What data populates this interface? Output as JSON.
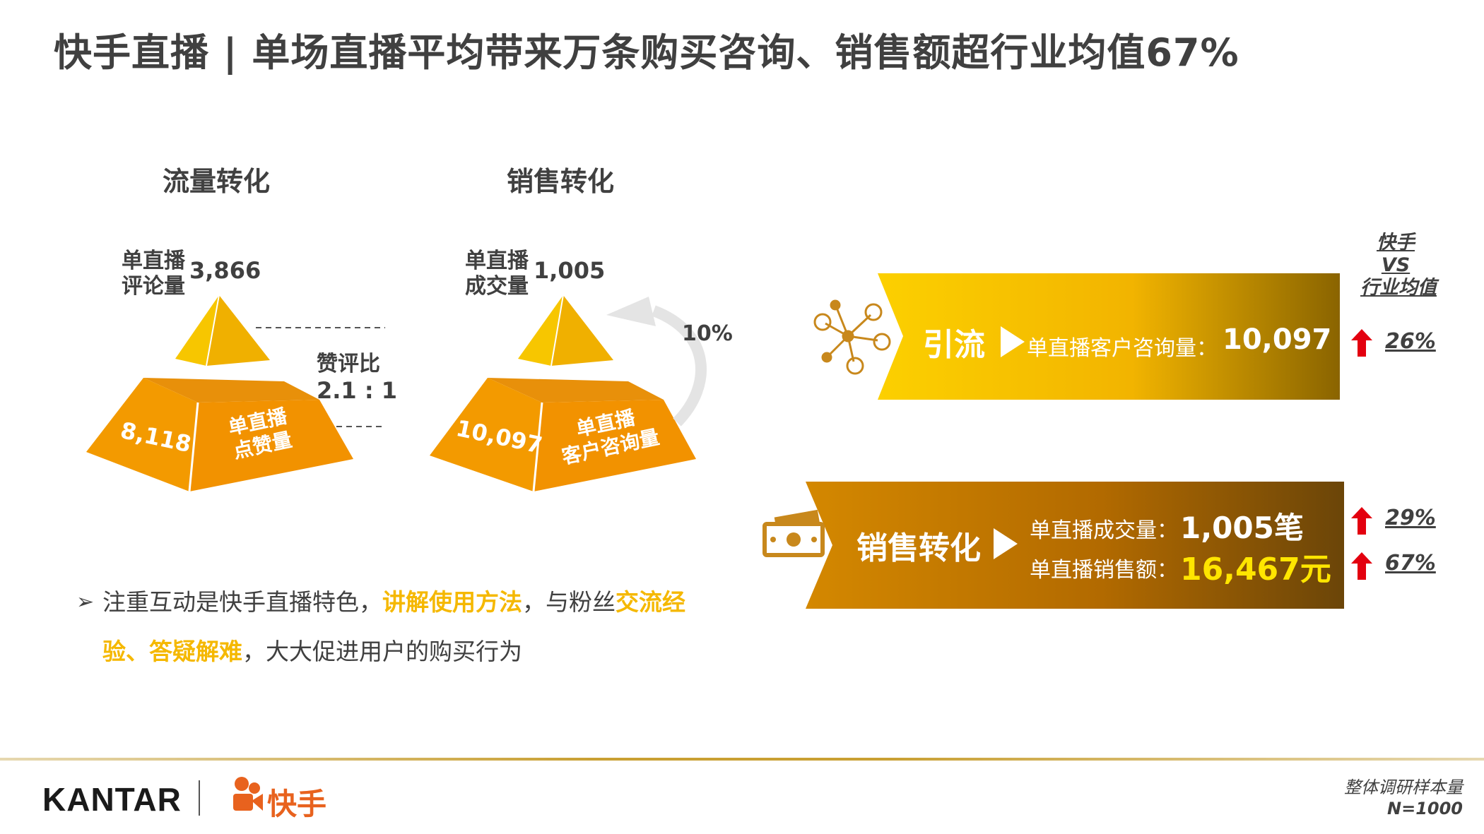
{
  "title": "快手直播 | 单场直播平均带来万条购买咨询、销售额超行业均值67%",
  "traffic": {
    "heading": "流量转化",
    "top_label_1": "单直播",
    "top_label_2": "评论量",
    "top_value": "3,866",
    "ratio_label": "赞评比",
    "ratio_value": "2.1 : 1",
    "base_value": "8,118",
    "base_label_1": "单直播",
    "base_label_2": "点赞量"
  },
  "sales": {
    "heading": "销售转化",
    "top_label_1": "单直播",
    "top_label_2": "成交量",
    "top_value": "1,005",
    "conversion": "10%",
    "base_value": "10,097",
    "base_label_1": "单直播",
    "base_label_2": "客户咨询量"
  },
  "compare_header": [
    "快手",
    "VS",
    "行业均值"
  ],
  "banner1": {
    "icon": "network-icon",
    "title": "引流",
    "metric_label": "单直播客户咨询量：",
    "metric_value": "10,097",
    "change": "26%"
  },
  "banner2": {
    "icon": "money-icon",
    "title": "销售转化",
    "row1_label": "单直播成交量：",
    "row1_value": "1,005笔",
    "row1_change": "29%",
    "row2_label": "单直播销售额：",
    "row2_value": "16,467元",
    "row2_change": "67%"
  },
  "bullet": {
    "marker": "➢",
    "t1": "注重互动是快手直播特色，",
    "h1": "讲解使用方法",
    "t2": "，与粉丝",
    "h2": "交流经验、答疑解难",
    "t3": "，大大促进用户的购买行为"
  },
  "footer": {
    "brand": "KANTAR",
    "partner": "快手",
    "sample_label": "整体调研样本量",
    "sample_value": "N=1000"
  },
  "colors": {
    "accent_yellow": "#f5b800",
    "pyramid_orange": "#f08c00",
    "pyramid_top": "#f5c000",
    "arrow_red": "#e3000f",
    "brown": "#6b4508"
  }
}
